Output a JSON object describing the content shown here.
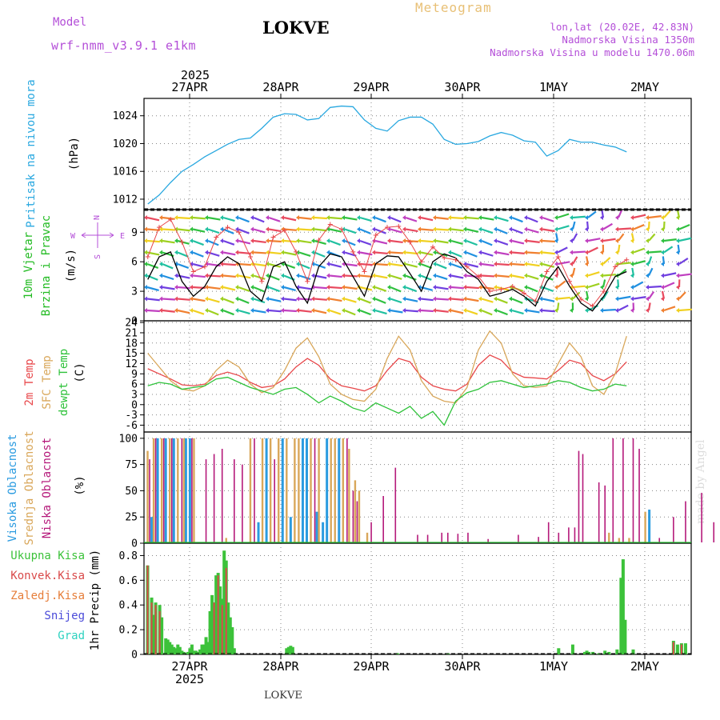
{
  "header": {
    "station": "LOKVE",
    "model_label": "Model",
    "model_name": "wrf-nmm_v3.9.1 e1km",
    "meteogram": "Meteogram",
    "lonlat": "lon,lat (20.02E, 42.83N)",
    "elevation": "Nadmorska Visina 1350m",
    "model_elevation": "Nadmorska Visina u modelu 1470.06m",
    "year": "2025",
    "footer": "LOKVE",
    "watermark": "made by Angel"
  },
  "colors": {
    "pressure": "#29a8e0",
    "temp2m": "#e8474a",
    "sfc": "#d9a75a",
    "dew": "#2ec23a",
    "high": "#2a9be0",
    "mid": "#d9a75a",
    "low": "#b5197a",
    "total": "#3cc23a",
    "conv": "#d94a4a",
    "frozen": "#e67e3a",
    "snow": "#4b4bd9",
    "hail": "#2ed2c0",
    "speed": "#000000",
    "gust": "#e8474a",
    "wind_label": "#22bb22",
    "dir_label": "#b44fd8"
  },
  "chart_data": [
    {
      "type": "line",
      "panel": "pressure",
      "ylabel_lines": [
        "Pritisak na nivou mora",
        "(hPa)"
      ],
      "ylim": [
        1010.5,
        1026.5
      ],
      "yticks": [
        1012,
        1016,
        1020,
        1024
      ],
      "grid": true,
      "x_start": "2025-04-26T13:00",
      "x_step_h": 3,
      "x_date_labels": [
        "27APR",
        "28APR",
        "29APR",
        "30APR",
        "1MAY",
        "2MAY"
      ],
      "series": [
        {
          "values": [
            1011.3,
            1012.6,
            1014.4,
            1016.0,
            1017.0,
            1018.1,
            1019.0,
            1019.9,
            1020.6,
            1020.8,
            1022.2,
            1023.8,
            1024.3,
            1024.2,
            1023.4,
            1023.6,
            1025.2,
            1025.4,
            1025.3,
            1023.4,
            1022.2,
            1021.8,
            1023.3,
            1023.8,
            1023.8,
            1022.8,
            1020.6,
            1019.9,
            1020.0,
            1020.3,
            1021.1,
            1021.6,
            1021.2,
            1020.4,
            1020.2,
            1018.2,
            1019.0,
            1020.6,
            1020.2,
            1020.2,
            1019.8,
            1019.5,
            1018.8
          ]
        }
      ]
    },
    {
      "type": "line",
      "panel": "wind",
      "ylabel_lines": [
        "10m Vjetar",
        "Brzina i Pravac",
        "(m/s)"
      ],
      "direction_legend": [
        "N",
        "W",
        "E",
        "S"
      ],
      "ylim": [
        0,
        11.3
      ],
      "yticks": [
        0,
        3,
        6,
        9
      ],
      "grid": true,
      "series": [
        {
          "values": [
            4.2,
            6.5,
            7.0,
            4.0,
            2.5,
            3.5,
            5.5,
            6.5,
            5.8,
            3.0,
            2.0,
            5.5,
            6.0,
            3.5,
            1.8,
            5.5,
            6.8,
            6.5,
            4.5,
            2.5,
            5.8,
            6.6,
            6.5,
            4.8,
            3.0,
            6.0,
            6.8,
            6.4,
            5.0,
            4.2,
            2.5,
            2.8,
            3.2,
            2.5,
            1.5,
            4.0,
            5.5,
            3.5,
            1.8,
            1.0,
            2.5,
            4.5,
            5.0
          ]
        },
        {
          "values": [
            6.5,
            9.5,
            10.3,
            8.0,
            5.0,
            5.5,
            8.5,
            9.5,
            9.0,
            6.5,
            4.0,
            8.5,
            9.2,
            7.0,
            4.0,
            8.2,
            9.8,
            9.3,
            7.0,
            5.0,
            8.7,
            9.5,
            9.6,
            8.0,
            6.0,
            7.5,
            6.4,
            6.2,
            5.5,
            4.5,
            3.0,
            3.2,
            3.5,
            2.8,
            2.0,
            5.0,
            6.5,
            4.0,
            2.2,
            1.5,
            3.0,
            5.5,
            6.2
          ]
        }
      ]
    },
    {
      "type": "line",
      "panel": "temperature",
      "ylabel_lines": [
        "2m Temp",
        "SFC Temp",
        "dewpt Temp",
        "(C)"
      ],
      "ylim": [
        -8,
        24.5
      ],
      "yticks": [
        -6,
        -3,
        0,
        3,
        6,
        9,
        12,
        15,
        18,
        21,
        24
      ],
      "grid": true,
      "series": [
        {
          "name": "2m Temp",
          "values": [
            10.5,
            9.0,
            7.5,
            5.8,
            5.5,
            6.0,
            8.5,
            9.5,
            8.5,
            6.5,
            5.0,
            5.5,
            7.5,
            11.0,
            13.5,
            11.5,
            7.5,
            5.5,
            4.8,
            4.0,
            5.5,
            10.0,
            13.5,
            12.5,
            8.0,
            5.5,
            4.5,
            4.0,
            6.0,
            11.5,
            14.5,
            13.0,
            9.5,
            8.0,
            7.8,
            7.5,
            10.0,
            13.0,
            12.0,
            8.5,
            7.0,
            9.0,
            12.5
          ]
        },
        {
          "name": "SFC Temp",
          "values": [
            15.0,
            11.0,
            7.0,
            4.5,
            4.0,
            5.5,
            10.0,
            13.0,
            11.0,
            6.0,
            3.5,
            5.0,
            10.0,
            16.5,
            19.5,
            14.0,
            6.0,
            3.0,
            1.5,
            1.0,
            4.5,
            13.5,
            20.0,
            16.0,
            7.0,
            2.5,
            1.0,
            0.5,
            5.0,
            16.0,
            21.5,
            18.0,
            9.0,
            5.5,
            5.0,
            5.5,
            12.0,
            18.0,
            14.0,
            5.5,
            3.0,
            9.0,
            20.0
          ]
        },
        {
          "name": "dewpt Temp",
          "values": [
            5.5,
            6.5,
            6.0,
            4.5,
            5.0,
            5.5,
            7.5,
            8.0,
            6.5,
            5.0,
            4.0,
            3.0,
            4.5,
            5.0,
            3.0,
            0.5,
            2.5,
            1.0,
            -1.0,
            -2.0,
            0.5,
            -1.0,
            -2.5,
            -0.5,
            -4.0,
            -2.0,
            -6.0,
            1.0,
            3.5,
            4.5,
            6.5,
            7.0,
            6.0,
            5.0,
            5.5,
            6.0,
            7.0,
            6.5,
            5.0,
            4.0,
            4.5,
            6.0,
            5.5
          ]
        }
      ]
    },
    {
      "type": "bar",
      "panel": "clouds",
      "ylabel_lines": [
        "Visoka Oblacnost",
        "Srednja Oblacnost",
        "Niska Oblacnost",
        "(%)"
      ],
      "ylim": [
        0,
        106
      ],
      "yticks": [
        0,
        25,
        50,
        75,
        100
      ],
      "grid": true,
      "series": [
        {
          "name": "Visoka Oblacnost",
          "bars": [
            [
              3,
              25
            ],
            [
              6,
              100
            ],
            [
              10,
              100
            ],
            [
              14,
              100
            ],
            [
              20,
              100
            ],
            [
              22,
              100
            ],
            [
              56,
              20
            ],
            [
              60,
              100
            ],
            [
              68,
              100
            ],
            [
              72,
              25
            ],
            [
              78,
              100
            ],
            [
              80,
              100
            ],
            [
              85,
              30
            ],
            [
              88,
              20
            ],
            [
              90,
              100
            ],
            [
              96,
              100
            ],
            [
              250,
              32
            ]
          ]
        },
        {
          "name": "Srednja Oblacnost",
          "bars": [
            [
              1,
              88
            ],
            [
              4,
              100
            ],
            [
              8,
              100
            ],
            [
              12,
              100
            ],
            [
              16,
              100
            ],
            [
              19,
              100
            ],
            [
              24,
              100
            ],
            [
              40,
              5
            ],
            [
              52,
              100
            ],
            [
              58,
              100
            ],
            [
              62,
              100
            ],
            [
              66,
              100
            ],
            [
              70,
              100
            ],
            [
              74,
              100
            ],
            [
              76,
              100
            ],
            [
              82,
              100
            ],
            [
              86,
              100
            ],
            [
              92,
              100
            ],
            [
              94,
              100
            ],
            [
              98,
              100
            ],
            [
              101,
              90
            ],
            [
              104,
              60
            ],
            [
              106,
              50
            ],
            [
              110,
              10
            ],
            [
              230,
              10
            ],
            [
              235,
              5
            ],
            [
              240,
              5
            ],
            [
              248,
              30
            ]
          ]
        },
        {
          "name": "Niska Oblacnost",
          "bars": [
            [
              2,
              80
            ],
            [
              5,
              100
            ],
            [
              9,
              100
            ],
            [
              13,
              100
            ],
            [
              18,
              100
            ],
            [
              23,
              100
            ],
            [
              30,
              80
            ],
            [
              34,
              85
            ],
            [
              38,
              90
            ],
            [
              44,
              80
            ],
            [
              48,
              75
            ],
            [
              54,
              100
            ],
            [
              64,
              80
            ],
            [
              84,
              100
            ],
            [
              100,
              100
            ],
            [
              103,
              50
            ],
            [
              105,
              40
            ],
            [
              112,
              20
            ],
            [
              118,
              45
            ],
            [
              124,
              72
            ],
            [
              135,
              8
            ],
            [
              140,
              8
            ],
            [
              147,
              10
            ],
            [
              150,
              10
            ],
            [
              155,
              9
            ],
            [
              160,
              10
            ],
            [
              170,
              4
            ],
            [
              185,
              8
            ],
            [
              195,
              6
            ],
            [
              200,
              20
            ],
            [
              205,
              10
            ],
            [
              210,
              15
            ],
            [
              213,
              15
            ],
            [
              215,
              88
            ],
            [
              217,
              85
            ],
            [
              225,
              58
            ],
            [
              228,
              55
            ],
            [
              232,
              100
            ],
            [
              237,
              100
            ],
            [
              242,
              100
            ],
            [
              245,
              90
            ],
            [
              255,
              5
            ],
            [
              262,
              25
            ],
            [
              268,
              40
            ],
            [
              276,
              48
            ],
            [
              282,
              20
            ]
          ]
        }
      ]
    },
    {
      "type": "bar",
      "panel": "precipitation",
      "ylabel_lines": [
        "1hr Precip (mm)"
      ],
      "legend": [
        "Ukupna Kisa",
        "Konvek.Kisa",
        "Zaledj.Kisa",
        "Snijeg",
        "Grad"
      ],
      "ylim": [
        0,
        0.9
      ],
      "yticks": [
        0,
        0.2,
        0.4,
        0.6,
        0.8
      ],
      "grid": true,
      "total_bars": [
        [
          1,
          0.72
        ],
        [
          3,
          0.46
        ],
        [
          4,
          0.32
        ],
        [
          5,
          0.42
        ],
        [
          7,
          0.4
        ],
        [
          8,
          0.3
        ],
        [
          10,
          0.13
        ],
        [
          11,
          0.12
        ],
        [
          12,
          0.1
        ],
        [
          13,
          0.08
        ],
        [
          14,
          0.06
        ],
        [
          15,
          0.05
        ],
        [
          16,
          0.08
        ],
        [
          17,
          0.06
        ],
        [
          18,
          0.03
        ],
        [
          19,
          0.02
        ],
        [
          21,
          0.02
        ],
        [
          22,
          0.05
        ],
        [
          23,
          0.08
        ],
        [
          24,
          0.03
        ],
        [
          25,
          0.03
        ],
        [
          26,
          0.02
        ],
        [
          27,
          0.04
        ],
        [
          28,
          0.08
        ],
        [
          29,
          0.08
        ],
        [
          30,
          0.14
        ],
        [
          31,
          0.1
        ],
        [
          32,
          0.35
        ],
        [
          33,
          0.48
        ],
        [
          34,
          0.42
        ],
        [
          35,
          0.64
        ],
        [
          36,
          0.66
        ],
        [
          37,
          0.55
        ],
        [
          38,
          0.45
        ],
        [
          39,
          0.84
        ],
        [
          40,
          0.76
        ],
        [
          41,
          0.42
        ],
        [
          42,
          0.3
        ],
        [
          43,
          0.22
        ],
        [
          44,
          0.05
        ],
        [
          70,
          0.05
        ],
        [
          71,
          0.06
        ],
        [
          72,
          0.07
        ],
        [
          73,
          0.06
        ],
        [
          125,
          0.01
        ],
        [
          150,
          0.01
        ],
        [
          205,
          0.05
        ],
        [
          212,
          0.08
        ],
        [
          218,
          0.02
        ],
        [
          219,
          0.03
        ],
        [
          220,
          0.02
        ],
        [
          222,
          0.02
        ],
        [
          225,
          0.01
        ],
        [
          228,
          0.03
        ],
        [
          230,
          0.02
        ],
        [
          234,
          0.04
        ],
        [
          236,
          0.62
        ],
        [
          237,
          0.77
        ],
        [
          238,
          0.28
        ],
        [
          242,
          0.04
        ],
        [
          262,
          0.11
        ],
        [
          264,
          0.08
        ],
        [
          266,
          0.09
        ],
        [
          268,
          0.09
        ]
      ],
      "conv_bars": [
        [
          1,
          0.72
        ],
        [
          3,
          0.42
        ],
        [
          5,
          0.4
        ],
        [
          7,
          0.35
        ],
        [
          34,
          0.42
        ],
        [
          36,
          0.64
        ],
        [
          38,
          0.4
        ],
        [
          40,
          0.7
        ],
        [
          262,
          0.1
        ],
        [
          266,
          0.08
        ]
      ]
    }
  ]
}
